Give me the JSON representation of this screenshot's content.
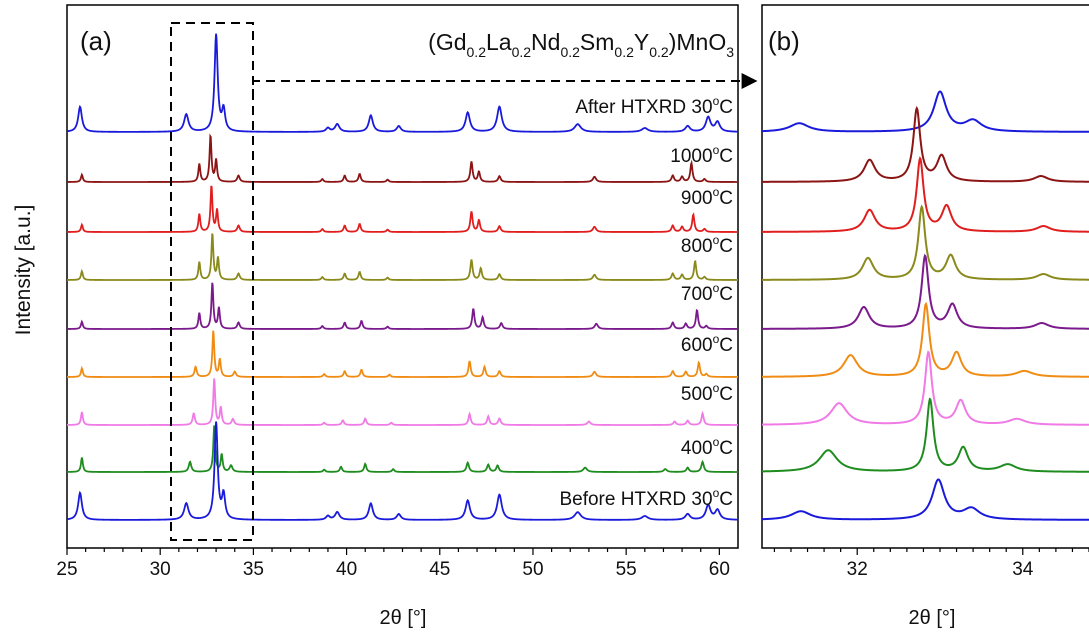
{
  "ylabel": "Intensity [a.u.]",
  "panel_a": {
    "label": "(a)",
    "compound": {
      "base": [
        "(Gd",
        "La",
        "Nd",
        "Sm",
        "Y",
        ")MnO"
      ],
      "subs": [
        "0.2",
        "0.2",
        "0.2",
        "0.2",
        "0.2",
        "3"
      ]
    },
    "xlabel": "2θ [°]",
    "xticks": [
      25,
      30,
      35,
      40,
      45,
      50,
      55,
      60
    ]
  },
  "panel_b": {
    "label": "(b)",
    "xlabel": "2θ [°]",
    "xticks": [
      32,
      34
    ]
  },
  "series_labels": [
    {
      "prefix": "After HTXRD 30",
      "sup": "o",
      "suffix": "C"
    },
    {
      "prefix": "1000",
      "sup": "o",
      "suffix": "C"
    },
    {
      "prefix": "900",
      "sup": "o",
      "suffix": "C"
    },
    {
      "prefix": "800",
      "sup": "o",
      "suffix": "C"
    },
    {
      "prefix": "700",
      "sup": "o",
      "suffix": "C"
    },
    {
      "prefix": "600",
      "sup": "o",
      "suffix": "C"
    },
    {
      "prefix": "500",
      "sup": "o",
      "suffix": "C"
    },
    {
      "prefix": "400",
      "sup": "o",
      "suffix": "C"
    },
    {
      "prefix": "Before HTXRD 30",
      "sup": "o",
      "suffix": "C"
    }
  ],
  "chart_data": [
    {
      "type": "line",
      "panel": "a",
      "xlim": [
        25,
        61
      ],
      "xlabel": "2θ [°]",
      "ylabel": "Intensity [a.u.]",
      "grid": false,
      "series": [
        {
          "name": "After HTXRD 30°C",
          "color": "#1a1adb",
          "tall": true,
          "peaks": [
            [
              25.7,
              0.26,
              0.12
            ],
            [
              31.4,
              0.18,
              0.14
            ],
            [
              33.0,
              1.0,
              0.1
            ],
            [
              33.4,
              0.22,
              0.1
            ],
            [
              39.0,
              0.04,
              0.12
            ],
            [
              39.5,
              0.08,
              0.14
            ],
            [
              41.3,
              0.17,
              0.13
            ],
            [
              42.8,
              0.06,
              0.13
            ],
            [
              46.5,
              0.2,
              0.14
            ],
            [
              48.2,
              0.26,
              0.15
            ],
            [
              52.4,
              0.08,
              0.2
            ],
            [
              56.0,
              0.04,
              0.2
            ],
            [
              58.3,
              0.06,
              0.15
            ],
            [
              59.4,
              0.15,
              0.15
            ],
            [
              59.9,
              0.1,
              0.15
            ]
          ]
        },
        {
          "name": "1000°C",
          "color": "#8b1414",
          "tall": false,
          "peaks": [
            [
              25.8,
              0.25,
              0.06
            ],
            [
              32.1,
              0.62,
              0.06
            ],
            [
              32.7,
              1.6,
              0.06
            ],
            [
              33.0,
              0.75,
              0.06
            ],
            [
              34.2,
              0.22,
              0.08
            ],
            [
              38.7,
              0.1,
              0.07
            ],
            [
              39.9,
              0.22,
              0.07
            ],
            [
              40.7,
              0.28,
              0.07
            ],
            [
              42.2,
              0.08,
              0.07
            ],
            [
              46.7,
              0.7,
              0.07
            ],
            [
              47.1,
              0.35,
              0.07
            ],
            [
              48.2,
              0.2,
              0.08
            ],
            [
              53.3,
              0.18,
              0.1
            ],
            [
              57.5,
              0.22,
              0.08
            ],
            [
              58.0,
              0.18,
              0.08
            ],
            [
              58.5,
              0.65,
              0.07
            ],
            [
              59.2,
              0.1,
              0.08
            ]
          ]
        },
        {
          "name": "900°C",
          "color": "#e01e1e",
          "tall": false,
          "peaks": [
            [
              25.8,
              0.25,
              0.06
            ],
            [
              32.1,
              0.62,
              0.06
            ],
            [
              32.75,
              1.6,
              0.06
            ],
            [
              33.05,
              0.75,
              0.06
            ],
            [
              34.2,
              0.22,
              0.08
            ],
            [
              38.7,
              0.1,
              0.07
            ],
            [
              39.9,
              0.22,
              0.07
            ],
            [
              40.7,
              0.28,
              0.07
            ],
            [
              42.2,
              0.08,
              0.07
            ],
            [
              46.7,
              0.7,
              0.07
            ],
            [
              47.1,
              0.4,
              0.07
            ],
            [
              48.2,
              0.2,
              0.08
            ],
            [
              53.3,
              0.18,
              0.1
            ],
            [
              57.5,
              0.22,
              0.08
            ],
            [
              58.0,
              0.18,
              0.08
            ],
            [
              58.6,
              0.6,
              0.07
            ],
            [
              59.2,
              0.1,
              0.08
            ]
          ]
        },
        {
          "name": "800°C",
          "color": "#8a8a1c",
          "tall": false,
          "peaks": [
            [
              25.8,
              0.3,
              0.06
            ],
            [
              32.1,
              0.62,
              0.06
            ],
            [
              32.8,
              1.6,
              0.06
            ],
            [
              33.1,
              0.75,
              0.06
            ],
            [
              34.2,
              0.22,
              0.08
            ],
            [
              38.7,
              0.1,
              0.07
            ],
            [
              39.9,
              0.22,
              0.07
            ],
            [
              40.7,
              0.28,
              0.07
            ],
            [
              42.2,
              0.08,
              0.07
            ],
            [
              46.7,
              0.7,
              0.07
            ],
            [
              47.2,
              0.4,
              0.07
            ],
            [
              48.2,
              0.2,
              0.08
            ],
            [
              53.3,
              0.18,
              0.1
            ],
            [
              57.5,
              0.22,
              0.08
            ],
            [
              58.0,
              0.18,
              0.08
            ],
            [
              58.7,
              0.65,
              0.07
            ],
            [
              59.2,
              0.1,
              0.08
            ]
          ]
        },
        {
          "name": "700°C",
          "color": "#7a1a8c",
          "tall": false,
          "peaks": [
            [
              25.8,
              0.25,
              0.06
            ],
            [
              32.1,
              0.55,
              0.06
            ],
            [
              32.8,
              1.6,
              0.06
            ],
            [
              33.15,
              0.72,
              0.06
            ],
            [
              34.2,
              0.22,
              0.08
            ],
            [
              38.7,
              0.1,
              0.07
            ],
            [
              39.9,
              0.22,
              0.07
            ],
            [
              40.8,
              0.28,
              0.07
            ],
            [
              42.2,
              0.08,
              0.07
            ],
            [
              46.8,
              0.7,
              0.07
            ],
            [
              47.3,
              0.4,
              0.07
            ],
            [
              48.3,
              0.2,
              0.08
            ],
            [
              53.4,
              0.18,
              0.1
            ],
            [
              57.5,
              0.22,
              0.08
            ],
            [
              58.2,
              0.18,
              0.08
            ],
            [
              58.8,
              0.65,
              0.07
            ],
            [
              59.3,
              0.1,
              0.08
            ]
          ]
        },
        {
          "name": "600°C",
          "color": "#f08c14",
          "tall": false,
          "peaks": [
            [
              25.8,
              0.3,
              0.06
            ],
            [
              31.9,
              0.35,
              0.07
            ],
            [
              32.85,
              1.6,
              0.06
            ],
            [
              33.2,
              0.6,
              0.06
            ],
            [
              34.0,
              0.18,
              0.08
            ],
            [
              38.8,
              0.1,
              0.07
            ],
            [
              39.9,
              0.2,
              0.07
            ],
            [
              40.8,
              0.25,
              0.07
            ],
            [
              42.3,
              0.08,
              0.07
            ],
            [
              46.6,
              0.55,
              0.07
            ],
            [
              47.4,
              0.35,
              0.07
            ],
            [
              48.2,
              0.2,
              0.08
            ],
            [
              53.3,
              0.18,
              0.1
            ],
            [
              57.5,
              0.2,
              0.08
            ],
            [
              58.2,
              0.18,
              0.08
            ],
            [
              58.9,
              0.5,
              0.07
            ],
            [
              59.3,
              0.1,
              0.08
            ]
          ]
        },
        {
          "name": "500°C",
          "color": "#f07ae6",
          "tall": false,
          "peaks": [
            [
              25.8,
              0.45,
              0.06
            ],
            [
              31.8,
              0.4,
              0.07
            ],
            [
              32.9,
              1.6,
              0.06
            ],
            [
              33.25,
              0.6,
              0.06
            ],
            [
              33.9,
              0.2,
              0.08
            ],
            [
              38.8,
              0.08,
              0.07
            ],
            [
              39.8,
              0.16,
              0.07
            ],
            [
              41.0,
              0.22,
              0.07
            ],
            [
              42.4,
              0.08,
              0.07
            ],
            [
              46.6,
              0.38,
              0.07
            ],
            [
              47.6,
              0.3,
              0.07
            ],
            [
              48.2,
              0.22,
              0.08
            ],
            [
              53.0,
              0.12,
              0.1
            ],
            [
              57.6,
              0.12,
              0.08
            ],
            [
              58.3,
              0.15,
              0.08
            ],
            [
              59.1,
              0.4,
              0.07
            ]
          ]
        },
        {
          "name": "400°C",
          "color": "#1f8c1f",
          "tall": false,
          "peaks": [
            [
              25.8,
              0.5,
              0.06
            ],
            [
              31.6,
              0.35,
              0.08
            ],
            [
              32.9,
              1.6,
              0.06
            ],
            [
              33.3,
              0.6,
              0.06
            ],
            [
              33.8,
              0.22,
              0.09
            ],
            [
              38.8,
              0.08,
              0.07
            ],
            [
              39.7,
              0.18,
              0.07
            ],
            [
              41.0,
              0.28,
              0.07
            ],
            [
              42.5,
              0.1,
              0.07
            ],
            [
              46.5,
              0.32,
              0.08
            ],
            [
              47.6,
              0.25,
              0.08
            ],
            [
              48.1,
              0.22,
              0.08
            ],
            [
              52.8,
              0.15,
              0.12
            ],
            [
              57.1,
              0.1,
              0.1
            ],
            [
              58.3,
              0.15,
              0.08
            ],
            [
              59.1,
              0.35,
              0.08
            ]
          ]
        },
        {
          "name": "Before HTXRD 30°C",
          "color": "#1a1adb",
          "tall": true,
          "peaks": [
            [
              25.7,
              0.28,
              0.12
            ],
            [
              31.4,
              0.17,
              0.14
            ],
            [
              33.0,
              1.0,
              0.1
            ],
            [
              33.4,
              0.25,
              0.1
            ],
            [
              39.0,
              0.04,
              0.12
            ],
            [
              39.5,
              0.08,
              0.14
            ],
            [
              41.3,
              0.17,
              0.13
            ],
            [
              42.8,
              0.06,
              0.13
            ],
            [
              46.5,
              0.2,
              0.14
            ],
            [
              48.2,
              0.26,
              0.15
            ],
            [
              52.4,
              0.08,
              0.2
            ],
            [
              56.0,
              0.04,
              0.2
            ],
            [
              58.3,
              0.06,
              0.15
            ],
            [
              59.4,
              0.15,
              0.15
            ],
            [
              59.9,
              0.1,
              0.15
            ]
          ]
        }
      ]
    },
    {
      "type": "line",
      "panel": "b",
      "xlim": [
        30.85,
        34.8
      ],
      "xlabel": "2θ [°]",
      "grid": false,
      "series": [
        {
          "name": "After HTXRD 30°C",
          "color": "#1a1adb",
          "peaks": [
            [
              31.3,
              0.12,
              0.14
            ],
            [
              33.0,
              0.55,
              0.09
            ],
            [
              33.4,
              0.15,
              0.12
            ]
          ]
        },
        {
          "name": "1000°C",
          "color": "#8b1414",
          "peaks": [
            [
              32.15,
              0.3,
              0.08
            ],
            [
              32.72,
              1.0,
              0.05
            ],
            [
              33.02,
              0.35,
              0.07
            ],
            [
              34.22,
              0.08,
              0.1
            ]
          ]
        },
        {
          "name": "900°C",
          "color": "#e01e1e",
          "peaks": [
            [
              32.15,
              0.3,
              0.08
            ],
            [
              32.76,
              1.0,
              0.05
            ],
            [
              33.08,
              0.35,
              0.07
            ],
            [
              34.25,
              0.08,
              0.1
            ]
          ]
        },
        {
          "name": "800°C",
          "color": "#8a8a1c",
          "peaks": [
            [
              32.13,
              0.3,
              0.08
            ],
            [
              32.78,
              1.0,
              0.05
            ],
            [
              33.13,
              0.33,
              0.07
            ],
            [
              34.25,
              0.08,
              0.1
            ]
          ]
        },
        {
          "name": "700°C",
          "color": "#7a1a8c",
          "peaks": [
            [
              32.08,
              0.3,
              0.08
            ],
            [
              32.82,
              1.0,
              0.05
            ],
            [
              33.15,
              0.33,
              0.07
            ],
            [
              34.23,
              0.08,
              0.1
            ]
          ]
        },
        {
          "name": "600°C",
          "color": "#f08c14",
          "peaks": [
            [
              31.92,
              0.3,
              0.1
            ],
            [
              32.83,
              1.0,
              0.05
            ],
            [
              33.2,
              0.33,
              0.07
            ],
            [
              34.02,
              0.08,
              0.12
            ]
          ]
        },
        {
          "name": "500°C",
          "color": "#f07ae6",
          "peaks": [
            [
              31.78,
              0.3,
              0.12
            ],
            [
              32.86,
              1.0,
              0.05
            ],
            [
              33.25,
              0.33,
              0.07
            ],
            [
              33.93,
              0.08,
              0.12
            ]
          ]
        },
        {
          "name": "400°C",
          "color": "#1f8c1f",
          "peaks": [
            [
              31.65,
              0.3,
              0.13
            ],
            [
              32.88,
              1.0,
              0.05
            ],
            [
              33.28,
              0.33,
              0.07
            ],
            [
              33.82,
              0.1,
              0.12
            ]
          ]
        },
        {
          "name": "Before HTXRD 30°C",
          "color": "#1a1adb",
          "peaks": [
            [
              31.32,
              0.12,
              0.14
            ],
            [
              32.98,
              0.55,
              0.09
            ],
            [
              33.38,
              0.15,
              0.12
            ]
          ]
        }
      ]
    }
  ]
}
